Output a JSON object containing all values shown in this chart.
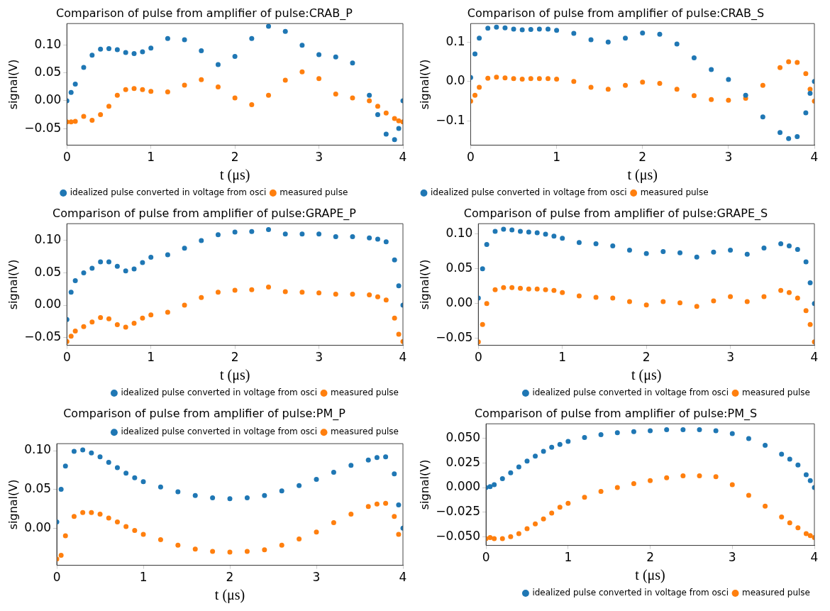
{
  "chart_data": [
    {
      "type": "scatter",
      "title": "Comparison of pulse from amplifier of pulse:CRAB_P",
      "xlabel": "t (μs)",
      "ylabel": "signal(V)",
      "grid": false,
      "marker": "circle",
      "legend": "bottom",
      "xlim": [
        0,
        4
      ],
      "xticks": [
        0,
        1,
        2,
        3,
        4
      ],
      "ylim": [
        -0.08,
        0.139
      ],
      "yticks": [
        {
          "value": -0.05,
          "label": "−0.05"
        },
        {
          "value": 0,
          "label": "0.00"
        },
        {
          "value": 0.05,
          "label": "0.05"
        },
        {
          "value": 0.1,
          "label": "0.10"
        }
      ],
      "x": [
        0,
        0.05,
        0.1,
        0.2,
        0.3,
        0.4,
        0.5,
        0.6,
        0.7,
        0.8,
        0.9,
        1.0,
        1.2,
        1.4,
        1.6,
        1.8,
        2.0,
        2.2,
        2.4,
        2.6,
        2.8,
        3.0,
        3.2,
        3.4,
        3.6,
        3.7,
        3.8,
        3.9,
        3.95,
        4.0
      ],
      "series": [
        {
          "name": "idealized pulse converted in voltage from osci",
          "color": "#1f77b4",
          "values": [
            0.0,
            0.015,
            0.03,
            0.06,
            0.082,
            0.093,
            0.094,
            0.092,
            0.087,
            0.085,
            0.088,
            0.095,
            0.112,
            0.11,
            0.09,
            0.065,
            0.08,
            0.112,
            0.134,
            0.125,
            0.1,
            0.083,
            0.079,
            0.068,
            0.01,
            -0.025,
            -0.06,
            -0.07,
            -0.05,
            0.0
          ]
        },
        {
          "name": "measured pulse",
          "color": "#ff7f0e",
          "values": [
            -0.038,
            -0.038,
            -0.037,
            -0.028,
            -0.035,
            -0.025,
            -0.01,
            0.01,
            0.02,
            0.022,
            0.02,
            0.017,
            0.016,
            0.028,
            0.038,
            0.025,
            0.005,
            -0.007,
            0.01,
            0.037,
            0.052,
            0.04,
            0.012,
            0.005,
            0.0,
            -0.01,
            -0.022,
            -0.032,
            -0.036,
            -0.038
          ]
        }
      ]
    },
    {
      "type": "scatter",
      "title": "Comparison of pulse from amplifier of pulse:CRAB_S",
      "xlabel": "t (μs)",
      "ylabel": "signal(V)",
      "grid": false,
      "marker": "circle",
      "legend": "bottom left",
      "xlim": [
        0,
        4
      ],
      "xticks": [
        0,
        1,
        2,
        3,
        4
      ],
      "ylim": [
        -0.162,
        0.147
      ],
      "yticks": [
        {
          "value": -0.1,
          "label": "−0.1"
        },
        {
          "value": 0,
          "label": "0.0"
        },
        {
          "value": 0.1,
          "label": "0.1"
        }
      ],
      "x": [
        0,
        0.05,
        0.1,
        0.2,
        0.3,
        0.4,
        0.5,
        0.6,
        0.7,
        0.8,
        0.9,
        1.0,
        1.2,
        1.4,
        1.6,
        1.8,
        2.0,
        2.2,
        2.4,
        2.6,
        2.8,
        3.0,
        3.2,
        3.4,
        3.6,
        3.7,
        3.8,
        3.9,
        3.95,
        4.0
      ],
      "series": [
        {
          "name": "idealized pulse converted in voltage from osci",
          "color": "#1f77b4",
          "values": [
            0.01,
            0.07,
            0.11,
            0.135,
            0.138,
            0.136,
            0.133,
            0.131,
            0.132,
            0.133,
            0.133,
            0.13,
            0.122,
            0.106,
            0.1,
            0.11,
            0.123,
            0.12,
            0.095,
            0.06,
            0.03,
            0.005,
            -0.035,
            -0.09,
            -0.13,
            -0.145,
            -0.14,
            -0.08,
            -0.03,
            0.0
          ]
        },
        {
          "name": "measured pulse",
          "color": "#ff7f0e",
          "values": [
            -0.05,
            -0.035,
            -0.015,
            0.008,
            0.011,
            0.009,
            0.007,
            0.006,
            0.007,
            0.007,
            0.007,
            0.006,
            0.0,
            -0.015,
            -0.02,
            -0.01,
            -0.002,
            -0.005,
            -0.02,
            -0.036,
            -0.046,
            -0.048,
            -0.043,
            -0.01,
            0.035,
            0.05,
            0.048,
            0.02,
            -0.02,
            -0.05
          ]
        }
      ]
    },
    {
      "type": "scatter",
      "title": "Comparison of pulse from amplifier of pulse:GRAPE_P",
      "xlabel": "t (μs)",
      "ylabel": "signal(V)",
      "grid": false,
      "marker": "circle",
      "legend": "bottom right",
      "xlim": [
        0,
        4
      ],
      "xticks": [
        0,
        1,
        2,
        3,
        4
      ],
      "ylim": [
        -0.062,
        0.126
      ],
      "yticks": [
        {
          "value": -0.05,
          "label": "−0.05"
        },
        {
          "value": 0,
          "label": "0.00"
        },
        {
          "value": 0.05,
          "label": "0.05"
        },
        {
          "value": 0.1,
          "label": "0.10"
        }
      ],
      "x": [
        0,
        0.05,
        0.1,
        0.2,
        0.3,
        0.4,
        0.5,
        0.6,
        0.7,
        0.8,
        0.9,
        1.0,
        1.2,
        1.4,
        1.6,
        1.8,
        2.0,
        2.2,
        2.4,
        2.6,
        2.8,
        3.0,
        3.2,
        3.4,
        3.6,
        3.7,
        3.8,
        3.9,
        3.95,
        4.0
      ],
      "series": [
        {
          "name": "idealized pulse converted in voltage from osci",
          "color": "#1f77b4",
          "values": [
            -0.022,
            0.02,
            0.038,
            0.05,
            0.057,
            0.067,
            0.067,
            0.06,
            0.053,
            0.056,
            0.066,
            0.074,
            0.078,
            0.088,
            0.1,
            0.109,
            0.113,
            0.114,
            0.117,
            0.11,
            0.11,
            0.11,
            0.106,
            0.106,
            0.104,
            0.102,
            0.098,
            0.07,
            0.03,
            0.0
          ]
        },
        {
          "name": "measured pulse",
          "color": "#ff7f0e",
          "values": [
            -0.056,
            -0.048,
            -0.04,
            -0.033,
            -0.026,
            -0.019,
            -0.021,
            -0.03,
            -0.034,
            -0.028,
            -0.02,
            -0.015,
            -0.011,
            0.0,
            0.012,
            0.02,
            0.023,
            0.024,
            0.028,
            0.021,
            0.02,
            0.019,
            0.017,
            0.017,
            0.016,
            0.013,
            0.008,
            -0.02,
            -0.045,
            -0.056
          ]
        }
      ]
    },
    {
      "type": "scatter",
      "title": "Comparison of pulse from amplifier of pulse:GRAPE_S",
      "xlabel": "t (μs)",
      "ylabel": "signal(V)",
      "grid": false,
      "marker": "circle",
      "legend": "bottom right",
      "xlim": [
        0,
        4
      ],
      "xticks": [
        0,
        1,
        2,
        3,
        4
      ],
      "ylim": [
        -0.06,
        0.115
      ],
      "yticks": [
        {
          "value": -0.05,
          "label": "−0.05"
        },
        {
          "value": 0,
          "label": "0.00"
        },
        {
          "value": 0.05,
          "label": "0.05"
        },
        {
          "value": 0.1,
          "label": "0.10"
        }
      ],
      "x": [
        0,
        0.05,
        0.1,
        0.2,
        0.3,
        0.4,
        0.5,
        0.6,
        0.7,
        0.8,
        0.9,
        1.0,
        1.2,
        1.4,
        1.6,
        1.8,
        2.0,
        2.2,
        2.4,
        2.6,
        2.8,
        3.0,
        3.2,
        3.4,
        3.6,
        3.7,
        3.8,
        3.9,
        3.95,
        4.0
      ],
      "series": [
        {
          "name": "idealized pulse converted in voltage from osci",
          "color": "#1f77b4",
          "values": [
            0.008,
            0.05,
            0.085,
            0.104,
            0.107,
            0.106,
            0.104,
            0.103,
            0.102,
            0.1,
            0.097,
            0.094,
            0.088,
            0.086,
            0.083,
            0.077,
            0.072,
            0.075,
            0.073,
            0.067,
            0.074,
            0.077,
            0.071,
            0.08,
            0.086,
            0.083,
            0.078,
            0.06,
            0.03,
            0.0
          ]
        },
        {
          "name": "measured pulse",
          "color": "#ff7f0e",
          "values": [
            -0.055,
            -0.03,
            0.0,
            0.02,
            0.023,
            0.023,
            0.022,
            0.021,
            0.021,
            0.02,
            0.019,
            0.016,
            0.011,
            0.009,
            0.008,
            0.003,
            -0.002,
            0.003,
            0.001,
            -0.004,
            0.004,
            0.01,
            0.003,
            0.01,
            0.019,
            0.016,
            0.008,
            -0.01,
            -0.03,
            -0.055
          ]
        }
      ]
    },
    {
      "type": "scatter",
      "title": "Comparison of pulse from amplifier of pulse:PM_P",
      "xlabel": "t (μs)",
      "ylabel": "signal(V)",
      "grid": false,
      "marker": "circle",
      "legend": "top right",
      "xlim": [
        0,
        4
      ],
      "xticks": [
        0,
        1,
        2,
        3,
        4
      ],
      "ylim": [
        -0.048,
        0.109
      ],
      "yticks": [
        {
          "value": 0,
          "label": "0.00"
        },
        {
          "value": 0.05,
          "label": "0.05"
        },
        {
          "value": 0.1,
          "label": "0.10"
        }
      ],
      "x": [
        0,
        0.05,
        0.1,
        0.2,
        0.3,
        0.4,
        0.5,
        0.6,
        0.7,
        0.8,
        0.9,
        1.0,
        1.2,
        1.4,
        1.6,
        1.8,
        2.0,
        2.2,
        2.4,
        2.6,
        2.8,
        3.0,
        3.2,
        3.4,
        3.6,
        3.7,
        3.8,
        3.9,
        3.95,
        4.0
      ],
      "series": [
        {
          "name": "idealized pulse converted in voltage from osci",
          "color": "#1f77b4",
          "values": [
            0.008,
            0.05,
            0.08,
            0.099,
            0.101,
            0.097,
            0.092,
            0.085,
            0.078,
            0.071,
            0.065,
            0.06,
            0.053,
            0.047,
            0.042,
            0.039,
            0.038,
            0.039,
            0.042,
            0.048,
            0.055,
            0.063,
            0.072,
            0.081,
            0.088,
            0.091,
            0.092,
            0.07,
            0.03,
            0.0
          ]
        },
        {
          "name": "measured pulse",
          "color": "#ff7f0e",
          "values": [
            -0.04,
            -0.035,
            -0.01,
            0.015,
            0.02,
            0.02,
            0.018,
            0.013,
            0.008,
            0.002,
            -0.003,
            -0.008,
            -0.015,
            -0.022,
            -0.027,
            -0.03,
            -0.031,
            -0.03,
            -0.028,
            -0.022,
            -0.014,
            -0.005,
            0.007,
            0.018,
            0.028,
            0.031,
            0.032,
            0.015,
            -0.008,
            null
          ]
        }
      ]
    },
    {
      "type": "scatter",
      "title": "Comparison of pulse from amplifier of pulse:PM_S",
      "xlabel": "t (μs)",
      "ylabel": "signal(V)",
      "grid": false,
      "marker": "circle",
      "legend": "bottom right",
      "xlim": [
        0,
        4
      ],
      "xticks": [
        0,
        1,
        2,
        3,
        4
      ],
      "ylim": [
        -0.059,
        0.065
      ],
      "yticks": [
        {
          "value": -0.05,
          "label": "−0.050"
        },
        {
          "value": -0.025,
          "label": "−0.025"
        },
        {
          "value": 0,
          "label": "0.000"
        },
        {
          "value": 0.025,
          "label": "0.025"
        },
        {
          "value": 0.05,
          "label": "0.050"
        }
      ],
      "x": [
        0,
        0.05,
        0.1,
        0.2,
        0.3,
        0.4,
        0.5,
        0.6,
        0.7,
        0.8,
        0.9,
        1.0,
        1.2,
        1.4,
        1.6,
        1.8,
        2.0,
        2.2,
        2.4,
        2.6,
        2.8,
        3.0,
        3.2,
        3.4,
        3.6,
        3.7,
        3.8,
        3.9,
        3.95,
        4.0
      ],
      "series": [
        {
          "name": "idealized pulse converted in voltage from osci",
          "color": "#1f77b4",
          "values": [
            0.0,
            0.001,
            0.003,
            0.009,
            0.015,
            0.021,
            0.027,
            0.032,
            0.037,
            0.041,
            0.044,
            0.047,
            0.051,
            0.054,
            0.056,
            0.057,
            0.058,
            0.059,
            0.059,
            0.059,
            0.058,
            0.055,
            0.05,
            0.043,
            0.034,
            0.029,
            0.023,
            0.013,
            0.007,
            0.0
          ]
        },
        {
          "name": "measured pulse",
          "color": "#ff7f0e",
          "values": [
            -0.052,
            -0.051,
            -0.052,
            -0.052,
            -0.05,
            -0.047,
            -0.042,
            -0.037,
            -0.032,
            -0.026,
            -0.02,
            -0.016,
            -0.01,
            -0.004,
            0.0,
            0.004,
            0.007,
            0.01,
            0.012,
            0.012,
            0.011,
            0.003,
            -0.008,
            -0.019,
            -0.03,
            -0.036,
            -0.041,
            -0.047,
            -0.049,
            -0.051
          ]
        }
      ]
    }
  ]
}
